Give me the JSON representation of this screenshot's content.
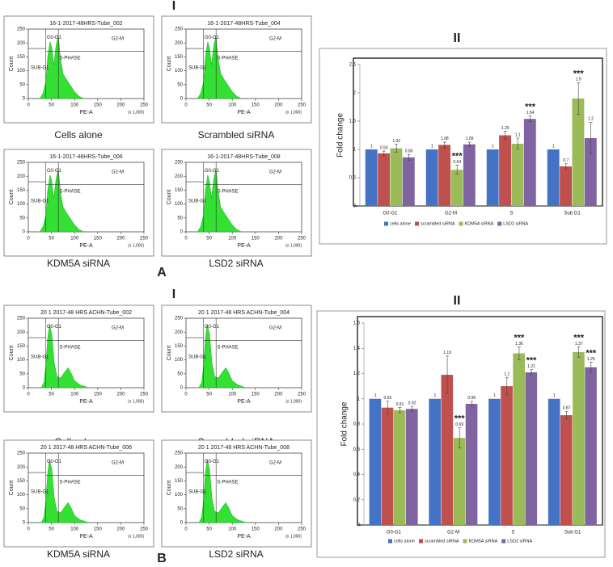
{
  "sections": [
    {
      "label": "A",
      "panel_i": "I",
      "plots": [
        {
          "title": "16-1-2017-48HRS-Tube_002",
          "caption": "Cells alone"
        },
        {
          "title": "16-1-2017-48HRS-Tube_004",
          "caption": "Scrambled siRNA"
        },
        {
          "title": "16-1-2017-48HRS-Tube_006",
          "caption": "KDM5A siRNA"
        },
        {
          "title": "16-1-2017-48HRS-Tube_008",
          "caption": "LSD2 siRNA"
        }
      ]
    },
    {
      "label": "B",
      "panel_i": "I",
      "plots": [
        {
          "title": "20 1 2017-48 HRS ACHN-Tube_002",
          "caption": "Cells alone"
        },
        {
          "title": "20 1 2017-48 HRS ACHN-Tube_004",
          "caption": "Scrambled siRNA"
        },
        {
          "title": "20 1 2017-48 HRS ACHN-Tube_006",
          "caption": "KDM5A siRNA"
        },
        {
          "title": "20 1 2017-48 HRS ACHN-Tube_008",
          "caption": "LSD2 siRNA"
        }
      ]
    }
  ],
  "gates": [
    "G0-G1",
    "S-PHASE",
    "SUB-G1",
    "G2-M"
  ],
  "flow_axis": {
    "xlabel": "PE-A",
    "ylabel": "Count",
    "xunit": "(x 1,000)",
    "xticks": [
      0,
      50,
      100,
      150,
      200,
      250
    ],
    "yticks": [
      0,
      50,
      100,
      150,
      200,
      250
    ]
  },
  "chart_data": [
    {
      "type": "bar",
      "title": "II",
      "ylabel": "Fold change",
      "categories": [
        "G0-G1",
        "G2-M",
        "S",
        "Sub G1"
      ],
      "series": [
        {
          "name": "cells alone",
          "color": "#4472c4",
          "values": [
            1,
            1,
            1,
            1
          ]
        },
        {
          "name": "scrambled siRNA",
          "color": "#c0504d",
          "values": [
            0.93,
            1.08,
            1.25,
            0.7
          ],
          "errors": [
            0.04,
            0.05,
            0.07,
            0.05
          ]
        },
        {
          "name": "KDM5A siRNA",
          "color": "#9bbb59",
          "values": [
            1.02,
            0.64,
            1.1,
            1.9
          ],
          "errors": [
            0.07,
            0.08,
            0.1,
            0.28
          ],
          "significance": [
            null,
            "***",
            null,
            "***"
          ]
        },
        {
          "name": "LSD2 siRNA",
          "color": "#8064a2",
          "values": [
            0.86,
            1.09,
            1.54,
            1.2
          ],
          "errors": [
            0.05,
            0.04,
            0.05,
            0.28
          ],
          "significance": [
            null,
            null,
            "***",
            null
          ]
        }
      ],
      "ylim": [
        0,
        2.5
      ],
      "yticks": [
        0,
        0.5,
        1,
        1.5,
        2,
        2.5
      ],
      "legend": "bottom"
    },
    {
      "type": "bar",
      "title": "II",
      "ylabel": "Fold change",
      "categories": [
        "G0-G1",
        "G2-M",
        "S",
        "Sub G1"
      ],
      "series": [
        {
          "name": "cells alone",
          "color": "#4472c4",
          "values": [
            1,
            1,
            1,
            1
          ]
        },
        {
          "name": "scrambled siRNA",
          "color": "#c0504d",
          "values": [
            0.93,
            1.19,
            1.1,
            0.87
          ],
          "errors": [
            0.05,
            0.15,
            0.07,
            0.03
          ]
        },
        {
          "name": "KDM5A siRNA",
          "color": "#9bbb59",
          "values": [
            0.91,
            0.69,
            1.36,
            1.37
          ],
          "errors": [
            0.02,
            0.08,
            0.05,
            0.04
          ],
          "significance": [
            null,
            "***",
            "***",
            "***"
          ]
        },
        {
          "name": "LSD2 siRNA",
          "color": "#8064a2",
          "values": [
            0.92,
            0.96,
            1.21,
            1.25
          ],
          "errors": [
            0.02,
            0.02,
            0.02,
            0.04
          ],
          "significance": [
            null,
            null,
            "***",
            "***"
          ]
        }
      ],
      "ylim": [
        0,
        1.6
      ],
      "yticks": [
        0,
        0.2,
        0.4,
        0.6,
        0.8,
        1,
        1.2,
        1.4,
        1.6
      ],
      "legend": "bottom"
    }
  ]
}
